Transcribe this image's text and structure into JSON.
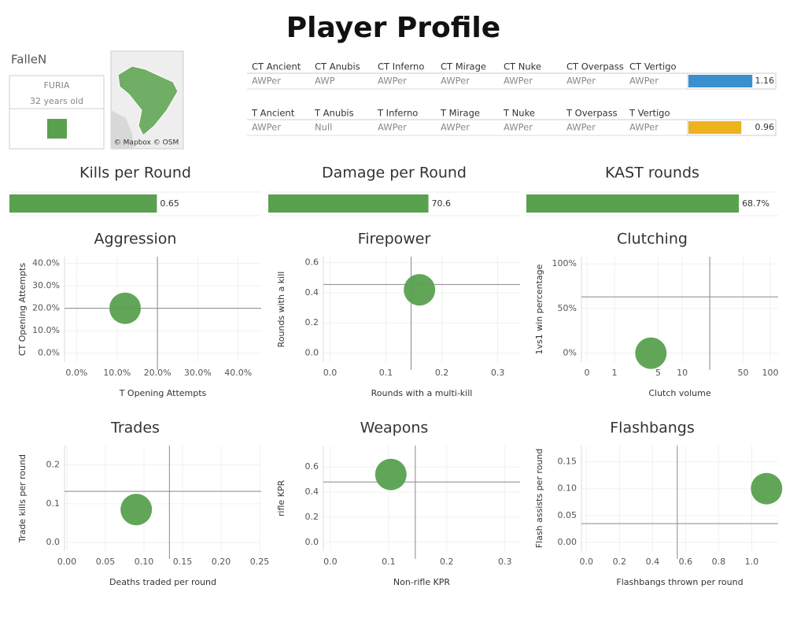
{
  "title": "Player Profile",
  "player": {
    "name": "FalleN",
    "team": "FURIA",
    "age": "32 years old"
  },
  "map": {
    "attribution": "© Mapbox © OSM"
  },
  "weapons": [
    {
      "headers": [
        "CT Ancient",
        "CT Anubis",
        "CT Inferno",
        "CT Mirage",
        "CT Nuke",
        "CT Overpass",
        "CT Vertigo"
      ],
      "values": [
        "AWPer",
        "AWP",
        "AWPer",
        "AWPer",
        "AWPer",
        "AWPer",
        "AWPer"
      ],
      "rating": 1.16,
      "color": "#3a8fcf"
    },
    {
      "headers": [
        "T Ancient",
        "T Anubis",
        "T Inferno",
        "T Mirage",
        "T Nuke",
        "T Overpass",
        "T Vertigo"
      ],
      "values": [
        "AWPer",
        "Null",
        "AWPer",
        "AWPer",
        "AWPer",
        "AWPer",
        "AWPer"
      ],
      "rating": 0.96,
      "color": "#eeb21e"
    }
  ],
  "chart_data": [
    {
      "type": "bar",
      "title": "Kills per Round",
      "values": [
        0.65
      ],
      "xlim": [
        0,
        1.11
      ],
      "color": "#59a14f"
    },
    {
      "type": "bar",
      "title": "Damage per Round",
      "values": [
        70.6
      ],
      "xlim": [
        0,
        111
      ],
      "color": "#59a14f"
    },
    {
      "type": "bar",
      "title": "KAST rounds",
      "values": [
        68.7
      ],
      "value_labels": [
        "68.7%"
      ],
      "xlim": [
        0,
        81.4
      ],
      "color": "#59a14f"
    },
    {
      "type": "scatter",
      "title": "Aggression",
      "x_label": "T Opening Attempts",
      "y_label": "CT Opening Attempts",
      "x": [
        12
      ],
      "y": [
        20
      ],
      "reference_x": 20,
      "reference_y": 20,
      "xlim": [
        -3,
        45.7
      ],
      "ylim": [
        -4,
        43
      ],
      "xticks": [
        {
          "value": 0,
          "label": "0.0%"
        },
        {
          "value": 10,
          "label": "10.0%"
        },
        {
          "value": 20,
          "label": "20.0%"
        },
        {
          "value": 30,
          "label": "30.0%"
        },
        {
          "value": 40,
          "label": "40.0%"
        }
      ],
      "yticks": [
        {
          "value": 0,
          "label": "0.0%"
        },
        {
          "value": 10,
          "label": "10.0%"
        },
        {
          "value": 20,
          "label": "20.0%"
        },
        {
          "value": 30,
          "label": "30.0%"
        },
        {
          "value": 40,
          "label": "40.0%"
        }
      ],
      "color": "#59a14f",
      "grid": true
    },
    {
      "type": "scatter",
      "title": "Firepower",
      "x_label": "Rounds with a multi-kill",
      "y_label": "Rounds with a kill",
      "x": [
        0.16
      ],
      "y": [
        0.42
      ],
      "reference_x": 0.145,
      "reference_y": 0.455,
      "xlim": [
        -0.012,
        0.34
      ],
      "ylim": [
        -0.06,
        0.64
      ],
      "xticks": [
        {
          "value": 0,
          "label": "0.0"
        },
        0.1,
        0.2,
        0.3
      ],
      "yticks": [
        {
          "value": 0,
          "label": "0.0"
        },
        0.2,
        0.4,
        0.6
      ],
      "color": "#59a14f",
      "grid": true
    },
    {
      "type": "scatter",
      "title": "Clutching",
      "x_label": "Clutch volume",
      "y_label": "1vs1 win percentage",
      "x": [
        4
      ],
      "y": [
        0
      ],
      "reference_x": 21,
      "reference_y": 63,
      "xlim": [
        -0.15,
        122
      ],
      "ylim": [
        -10,
        108
      ],
      "xscale": "symlog",
      "xticks": [
        0,
        1,
        5,
        10,
        50,
        100
      ],
      "yticks": [
        {
          "value": 0,
          "label": "0%"
        },
        {
          "value": 50,
          "label": "50%"
        },
        {
          "value": 100,
          "label": "100%"
        }
      ],
      "color": "#59a14f",
      "grid": true
    },
    {
      "type": "scatter",
      "title": "Trades",
      "x_label": "Deaths traded per round",
      "y_label": "Trade kills per round",
      "x": [
        0.09
      ],
      "y": [
        0.085
      ],
      "reference_x": 0.133,
      "reference_y": 0.132,
      "xlim": [
        -0.003,
        0.252
      ],
      "ylim": [
        -0.022,
        0.25
      ],
      "xticks": [
        {
          "value": 0,
          "label": "0.00"
        },
        0.05,
        {
          "value": 0.1,
          "label": "0.10"
        },
        0.15,
        {
          "value": 0.2,
          "label": "0.20"
        },
        0.25
      ],
      "yticks": [
        {
          "value": 0,
          "label": "0.0"
        },
        0.1,
        0.2
      ],
      "color": "#59a14f",
      "grid": true
    },
    {
      "type": "scatter",
      "title": "Weapons",
      "x_label": "Non-rifle KPR",
      "y_label": "rifle KPR",
      "x": [
        0.104
      ],
      "y": [
        0.54
      ],
      "reference_x": 0.146,
      "reference_y": 0.48,
      "xlim": [
        -0.012,
        0.326
      ],
      "ylim": [
        -0.07,
        0.77
      ],
      "xticks": [
        {
          "value": 0,
          "label": "0.0"
        },
        0.1,
        0.2,
        0.3
      ],
      "yticks": [
        {
          "value": 0,
          "label": "0.0"
        },
        0.2,
        0.4,
        0.6
      ],
      "color": "#59a14f",
      "grid": true
    },
    {
      "type": "scatter",
      "title": "Flashbangs",
      "x_label": "Flashbangs thrown per round",
      "y_label": "Flash assists per round",
      "x": [
        1.09
      ],
      "y": [
        0.1
      ],
      "reference_x": 0.55,
      "reference_y": 0.035,
      "xlim": [
        -0.03,
        1.16
      ],
      "ylim": [
        -0.016,
        0.18
      ],
      "xticks": [
        {
          "value": 0,
          "label": "0.0"
        },
        0.2,
        0.4,
        0.6,
        0.8,
        {
          "value": 1,
          "label": "1.0"
        }
      ],
      "yticks": [
        {
          "value": 0,
          "label": "0.00"
        },
        0.05,
        {
          "value": 0.1,
          "label": "0.10"
        },
        0.15
      ],
      "color": "#59a14f",
      "grid": true
    }
  ]
}
